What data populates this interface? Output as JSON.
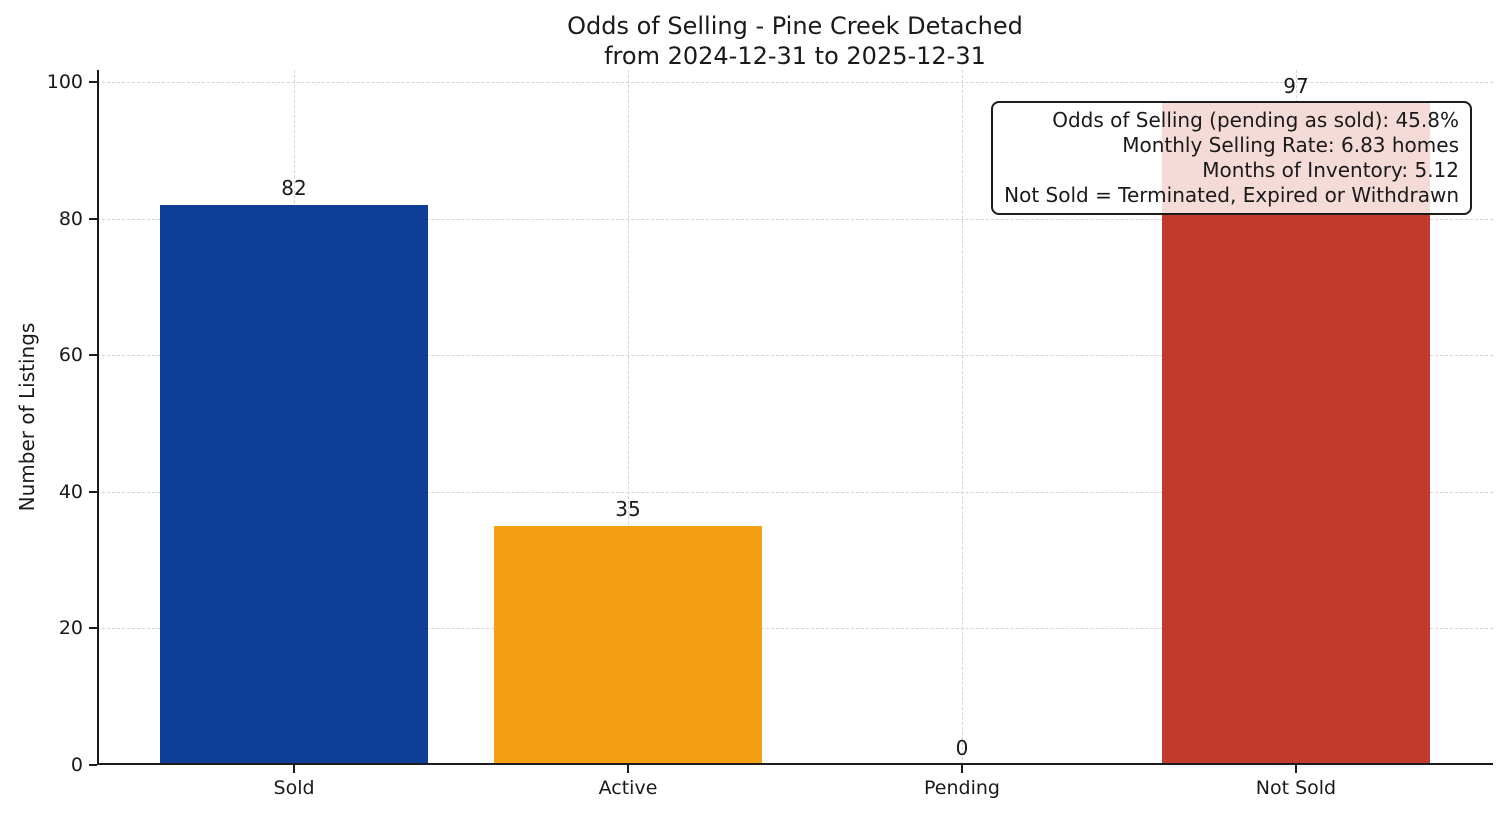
{
  "title": {
    "line1": "Odds of Selling - Pine Creek Detached",
    "line2": "from 2024-12-31 to 2025-12-31"
  },
  "axes": {
    "y_label": "Number of Listings",
    "y_ticks": [
      0,
      20,
      40,
      60,
      80,
      100
    ]
  },
  "annotation": {
    "lines": [
      "Odds of Selling (pending as sold): 45.8%",
      "Monthly Selling Rate: 6.83 homes",
      "Months of Inventory: 5.12",
      "Not Sold = Terminated, Expired or Withdrawn"
    ]
  },
  "chart_data": {
    "type": "bar",
    "title": "Odds of Selling - Pine Creek Detached from 2024-12-31 to 2025-12-31",
    "categories": [
      "Sold",
      "Active",
      "Pending",
      "Not Sold"
    ],
    "values": [
      82,
      35,
      0,
      97
    ],
    "bar_value_labels": [
      "82",
      "35",
      "0",
      "97"
    ],
    "bar_colors": [
      "#0e3e96",
      "#f4a012",
      null,
      "#c23a2b"
    ],
    "xlabel": "",
    "ylabel": "Number of Listings",
    "ylim": [
      0,
      101.8
    ],
    "y_ticks": [
      0,
      20,
      40,
      60,
      80,
      100
    ],
    "grid": {
      "horizontal": true,
      "vertical": true,
      "style": "dashed"
    },
    "legend_position": "none",
    "annotations": [
      "Odds of Selling (pending as sold): 45.8%",
      "Monthly Selling Rate: 6.83 homes",
      "Months of Inventory: 5.12",
      "Not Sold = Terminated, Expired or Withdrawn"
    ]
  },
  "colors": {
    "sold_bar": "#0e3e96",
    "active_bar": "#f4a012",
    "not_sold_bar": "#c23a2b",
    "grid": "#d4d4d4",
    "axis": "#1c1c1c",
    "text": "#1a1a1a",
    "annotation_background": "rgba(255,255,255,0.82)",
    "page_background": "#ffffff"
  }
}
